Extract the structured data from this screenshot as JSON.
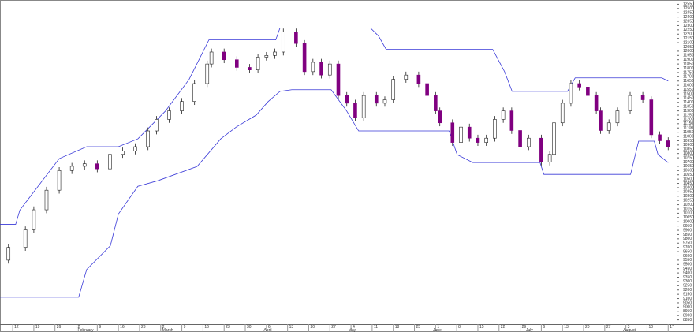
{
  "chart_data": {
    "type": "candlestick",
    "xlim": [
      -1,
      159
    ],
    "ylim": [
      8800,
      12600
    ],
    "xticks": [
      {
        "value": 2,
        "label": "12"
      },
      {
        "value": 7,
        "label": "19"
      },
      {
        "value": 12,
        "label": "26"
      },
      {
        "value": 17,
        "label": "2"
      },
      {
        "value": 22,
        "label": "9"
      },
      {
        "value": 27,
        "label": "16"
      },
      {
        "value": 32,
        "label": "23"
      },
      {
        "value": 37,
        "label": "2"
      },
      {
        "value": 42,
        "label": "9"
      },
      {
        "value": 47,
        "label": "16"
      },
      {
        "value": 52,
        "label": "23"
      },
      {
        "value": 57,
        "label": "30"
      },
      {
        "value": 62,
        "label": "6"
      },
      {
        "value": 67,
        "label": "13"
      },
      {
        "value": 72,
        "label": "20"
      },
      {
        "value": 77,
        "label": "27"
      },
      {
        "value": 82,
        "label": "4"
      },
      {
        "value": 87,
        "label": "11"
      },
      {
        "value": 92,
        "label": "18"
      },
      {
        "value": 97,
        "label": "25"
      },
      {
        "value": 102,
        "label": "1"
      },
      {
        "value": 107,
        "label": "8"
      },
      {
        "value": 112,
        "label": "15"
      },
      {
        "value": 117,
        "label": "22"
      },
      {
        "value": 122,
        "label": "29"
      },
      {
        "value": 127,
        "label": "6"
      },
      {
        "value": 132,
        "label": "13"
      },
      {
        "value": 137,
        "label": "20"
      },
      {
        "value": 142,
        "label": "27"
      },
      {
        "value": 147,
        "label": "3"
      },
      {
        "value": 152,
        "label": "10"
      },
      {
        "value": 157,
        "label": "17"
      }
    ],
    "months": [
      {
        "value": 17,
        "label": "February"
      },
      {
        "value": 37,
        "label": "March"
      },
      {
        "value": 61,
        "label": "April"
      },
      {
        "value": 81,
        "label": "May"
      },
      {
        "value": 101,
        "label": "June"
      },
      {
        "value": 123,
        "label": "July"
      },
      {
        "value": 146,
        "label": "August"
      }
    ],
    "yticks": [
      12550,
      12500,
      12450,
      12400,
      12350,
      12300,
      12250,
      12200,
      12150,
      12100,
      12050,
      12000,
      11950,
      11900,
      11850,
      11800,
      11750,
      11700,
      11650,
      11600,
      11550,
      11500,
      11450,
      11400,
      11350,
      11300,
      11250,
      11200,
      11150,
      11100,
      11050,
      11000,
      10950,
      10900,
      10850,
      10800,
      10750,
      10700,
      10650,
      10600,
      10550,
      10500,
      10450,
      10400,
      10350,
      10300,
      10250,
      10200,
      10150,
      10100,
      10050,
      10000,
      9950,
      9900,
      9850,
      9800,
      9750,
      9700,
      9650,
      9600,
      9550,
      9500,
      9450,
      9400,
      9350,
      9300,
      9250,
      9200,
      9150,
      9100,
      9050,
      9000,
      8950,
      8900,
      8850
    ],
    "up_color": "#ffffff",
    "down_color": "#800080",
    "candles": {
      "x": [
        1,
        5,
        7,
        10,
        13,
        16,
        19,
        22,
        25,
        28,
        31,
        34,
        36,
        39,
        42,
        45,
        48,
        49,
        52,
        55,
        58,
        60,
        62,
        64,
        66,
        69,
        71,
        73,
        75,
        77,
        79,
        81,
        83,
        85,
        88,
        90,
        92,
        95,
        98,
        100,
        102,
        103,
        106,
        108,
        110,
        112,
        114,
        116,
        118,
        120,
        122,
        124,
        127,
        129,
        130,
        132,
        134,
        136,
        138,
        140,
        141,
        143,
        145,
        148,
        151,
        153,
        155,
        157
      ],
      "open": [
        9550,
        9700,
        9905,
        10140,
        10370,
        10600,
        10650,
        10680,
        10620,
        10790,
        10830,
        10880,
        11065,
        11200,
        11300,
        11410,
        11620,
        11850,
        11990,
        11900,
        11810,
        11780,
        11930,
        11950,
        11990,
        12225,
        12090,
        11760,
        11870,
        11720,
        11850,
        11480,
        11390,
        11220,
        11480,
        11390,
        11430,
        11670,
        11720,
        11620,
        11480,
        11300,
        11160,
        10930,
        11110,
        10980,
        10930,
        10980,
        11200,
        11300,
        11070,
        10880,
        10980,
        10700,
        10790,
        11160,
        11390,
        11620,
        11580,
        11480,
        11300,
        11070,
        11160,
        11300,
        11480,
        11430,
        11020,
        10950
      ],
      "high": [
        9740,
        9945,
        10180,
        10410,
        10640,
        10690,
        10720,
        10720,
        10830,
        10870,
        10920,
        11105,
        11240,
        11340,
        11450,
        11660,
        11890,
        12030,
        12030,
        11940,
        11850,
        11970,
        11990,
        12030,
        12265,
        12265,
        12130,
        11910,
        11910,
        11890,
        11890,
        11520,
        11430,
        11520,
        11520,
        11470,
        11710,
        11760,
        11760,
        11660,
        11520,
        11340,
        11200,
        11150,
        11150,
        11020,
        11020,
        11240,
        11340,
        11340,
        11110,
        11020,
        11020,
        10830,
        11200,
        11430,
        11660,
        11660,
        11620,
        11520,
        11340,
        11200,
        11340,
        11520,
        11520,
        11470,
        11060,
        10990
      ],
      "low": [
        9510,
        9660,
        9865,
        10100,
        10330,
        10560,
        10610,
        10580,
        10580,
        10750,
        10790,
        10840,
        11025,
        11160,
        11260,
        11370,
        11580,
        11810,
        11860,
        11770,
        11740,
        11740,
        11890,
        11910,
        11950,
        12050,
        11720,
        11720,
        11680,
        11680,
        11440,
        11350,
        11180,
        11180,
        11350,
        11350,
        11390,
        11630,
        11580,
        11440,
        11260,
        11120,
        10890,
        10890,
        10940,
        10890,
        10890,
        10940,
        11160,
        11030,
        10840,
        10840,
        10660,
        10660,
        10750,
        11120,
        11350,
        11540,
        11440,
        11260,
        11030,
        11030,
        11120,
        11260,
        11390,
        10980,
        10910,
        10840
      ],
      "close": [
        9700,
        9905,
        10140,
        10370,
        10600,
        10650,
        10680,
        10620,
        10790,
        10830,
        10880,
        11065,
        11200,
        11300,
        11410,
        11620,
        11850,
        11990,
        11900,
        11810,
        11780,
        11930,
        11950,
        11990,
        12225,
        12090,
        11760,
        11870,
        11720,
        11850,
        11480,
        11390,
        11220,
        11480,
        11390,
        11430,
        11670,
        11720,
        11620,
        11480,
        11300,
        11160,
        10930,
        11110,
        10980,
        10930,
        10980,
        11200,
        11300,
        11070,
        10880,
        10980,
        10700,
        10790,
        11160,
        11390,
        11620,
        11580,
        11480,
        11300,
        11070,
        11160,
        11300,
        11480,
        11430,
        11020,
        10950,
        10880
      ]
    },
    "bands": [
      {
        "color": "#3a3ad8",
        "x": [
          -1,
          2.7,
          3.7,
          13,
          19.5,
          27,
          31.6,
          34.4,
          38.1,
          43.7,
          48.4,
          64.2,
          65.2,
          86.6,
          88.5,
          90.3,
          115.5,
          118.3,
          120.1,
          133.2,
          135,
          155.5,
          157
        ],
        "values": [
          9970,
          9970,
          10137,
          10740,
          10880,
          10880,
          10972,
          11112,
          11297,
          11668,
          12132,
          12132,
          12272,
          12272,
          12179,
          12021,
          12021,
          11761,
          11529,
          11529,
          11687,
          11687,
          11650
        ]
      },
      {
        "color": "#3a3ad8",
        "x": [
          -1,
          17.6,
          19.5,
          25.1,
          27,
          31.6,
          36.3,
          45.6,
          51.2,
          54.9,
          59.6,
          62.4,
          65.2,
          68,
          77.3,
          81,
          83.8,
          105.2,
          107.1,
          110.8,
          126.7,
          127.6,
          148.1,
          150,
          153.7,
          154.6,
          157
        ],
        "values": [
          9116,
          9116,
          9441,
          9720,
          10091,
          10416,
          10481,
          10648,
          10972,
          11112,
          11251,
          11409,
          11529,
          11548,
          11548,
          11297,
          11065,
          11065,
          10787,
          10694,
          10694,
          10555,
          10555,
          10945,
          10945,
          10787,
          10694
        ]
      }
    ]
  }
}
